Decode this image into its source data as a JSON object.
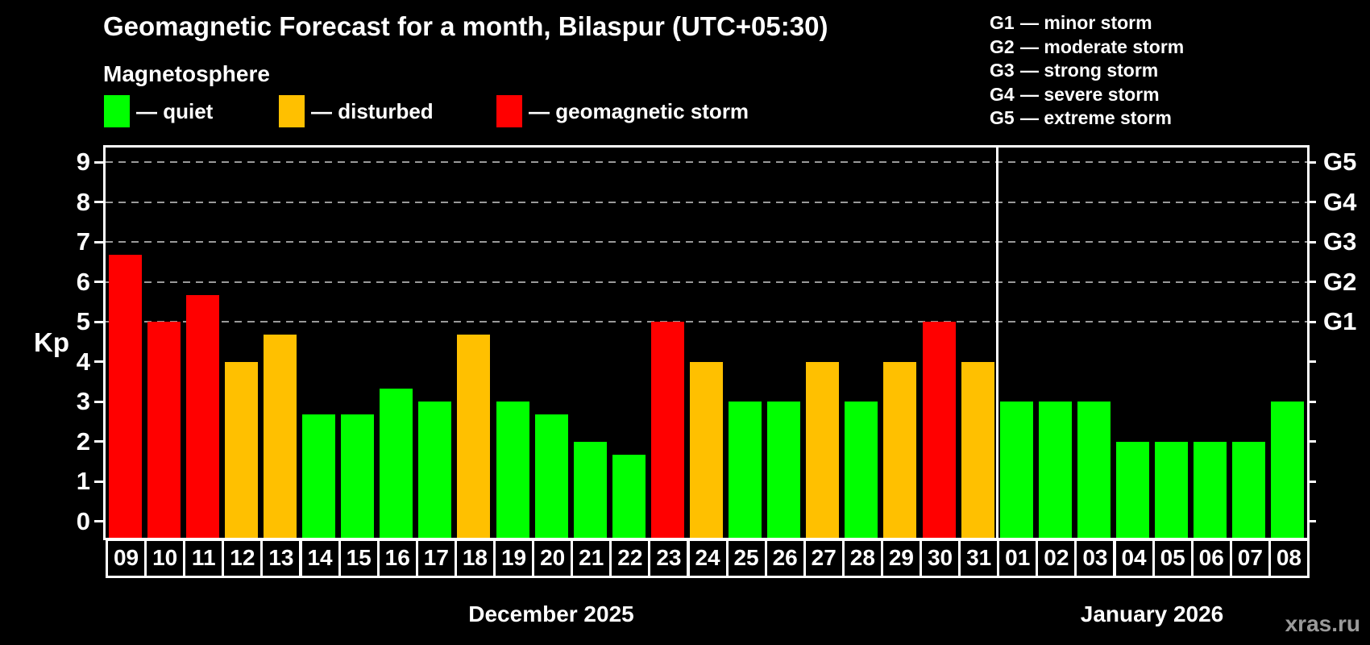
{
  "header": {
    "title": "Geomagnetic Forecast for a month, Bilaspur (UTC+05:30)",
    "subtitle": "Magnetosphere"
  },
  "legend": {
    "items": [
      {
        "name": "quiet",
        "label": "— quiet",
        "color": "#00ff00"
      },
      {
        "name": "disturbed",
        "label": "— disturbed",
        "color": "#ffc000"
      },
      {
        "name": "storm",
        "label": "— geomagnetic storm",
        "color": "#ff0000"
      }
    ]
  },
  "storm_scale": {
    "items": [
      {
        "code": "G1",
        "label": "— minor storm",
        "kp": 5
      },
      {
        "code": "G2",
        "label": "— moderate storm",
        "kp": 6
      },
      {
        "code": "G3",
        "label": "— strong storm",
        "kp": 7
      },
      {
        "code": "G4",
        "label": "— severe storm",
        "kp": 8
      },
      {
        "code": "G5",
        "label": "— extreme storm",
        "kp": 9
      }
    ]
  },
  "watermark": "xras.ru",
  "chart_data": {
    "type": "bar",
    "title": "Geomagnetic Forecast for a month, Bilaspur (UTC+05:30)",
    "ylabel": "Kp",
    "ylim": [
      0,
      9.35
    ],
    "yticks": [
      0,
      1,
      2,
      3,
      4,
      5,
      6,
      7,
      8,
      9
    ],
    "gridlines_at_kp": [
      5,
      6,
      7,
      8,
      9
    ],
    "grid": "dashed horizontal at G storm levels only",
    "legend_position": "top-left",
    "right_axis": "G1..G5 at Kp 5..9",
    "status_colors": {
      "quiet": "#00ff00",
      "disturbed": "#ffc000",
      "storm": "#ff0000"
    },
    "months": [
      {
        "label": "December 2025",
        "days": [
          {
            "day": "09",
            "kp": 6.67,
            "status": "storm"
          },
          {
            "day": "10",
            "kp": 5.0,
            "status": "storm"
          },
          {
            "day": "11",
            "kp": 5.67,
            "status": "storm"
          },
          {
            "day": "12",
            "kp": 4.0,
            "status": "disturbed"
          },
          {
            "day": "13",
            "kp": 4.67,
            "status": "disturbed"
          },
          {
            "day": "14",
            "kp": 2.67,
            "status": "quiet"
          },
          {
            "day": "15",
            "kp": 2.67,
            "status": "quiet"
          },
          {
            "day": "16",
            "kp": 3.33,
            "status": "quiet"
          },
          {
            "day": "17",
            "kp": 3.0,
            "status": "quiet"
          },
          {
            "day": "18",
            "kp": 4.67,
            "status": "disturbed"
          },
          {
            "day": "19",
            "kp": 3.0,
            "status": "quiet"
          },
          {
            "day": "20",
            "kp": 2.67,
            "status": "quiet"
          },
          {
            "day": "21",
            "kp": 2.0,
            "status": "quiet"
          },
          {
            "day": "22",
            "kp": 1.67,
            "status": "quiet"
          },
          {
            "day": "23",
            "kp": 5.0,
            "status": "storm"
          },
          {
            "day": "24",
            "kp": 4.0,
            "status": "disturbed"
          },
          {
            "day": "25",
            "kp": 3.0,
            "status": "quiet"
          },
          {
            "day": "26",
            "kp": 3.0,
            "status": "quiet"
          },
          {
            "day": "27",
            "kp": 4.0,
            "status": "disturbed"
          },
          {
            "day": "28",
            "kp": 3.0,
            "status": "quiet"
          },
          {
            "day": "29",
            "kp": 4.0,
            "status": "disturbed"
          },
          {
            "day": "30",
            "kp": 5.0,
            "status": "storm"
          },
          {
            "day": "31",
            "kp": 4.0,
            "status": "disturbed"
          }
        ]
      },
      {
        "label": "January 2026",
        "days": [
          {
            "day": "01",
            "kp": 3.0,
            "status": "quiet"
          },
          {
            "day": "02",
            "kp": 3.0,
            "status": "quiet"
          },
          {
            "day": "03",
            "kp": 3.0,
            "status": "quiet"
          },
          {
            "day": "04",
            "kp": 2.0,
            "status": "quiet"
          },
          {
            "day": "05",
            "kp": 2.0,
            "status": "quiet"
          },
          {
            "day": "06",
            "kp": 2.0,
            "status": "quiet"
          },
          {
            "day": "07",
            "kp": 2.0,
            "status": "quiet"
          },
          {
            "day": "08",
            "kp": 3.0,
            "status": "quiet"
          }
        ]
      }
    ]
  }
}
